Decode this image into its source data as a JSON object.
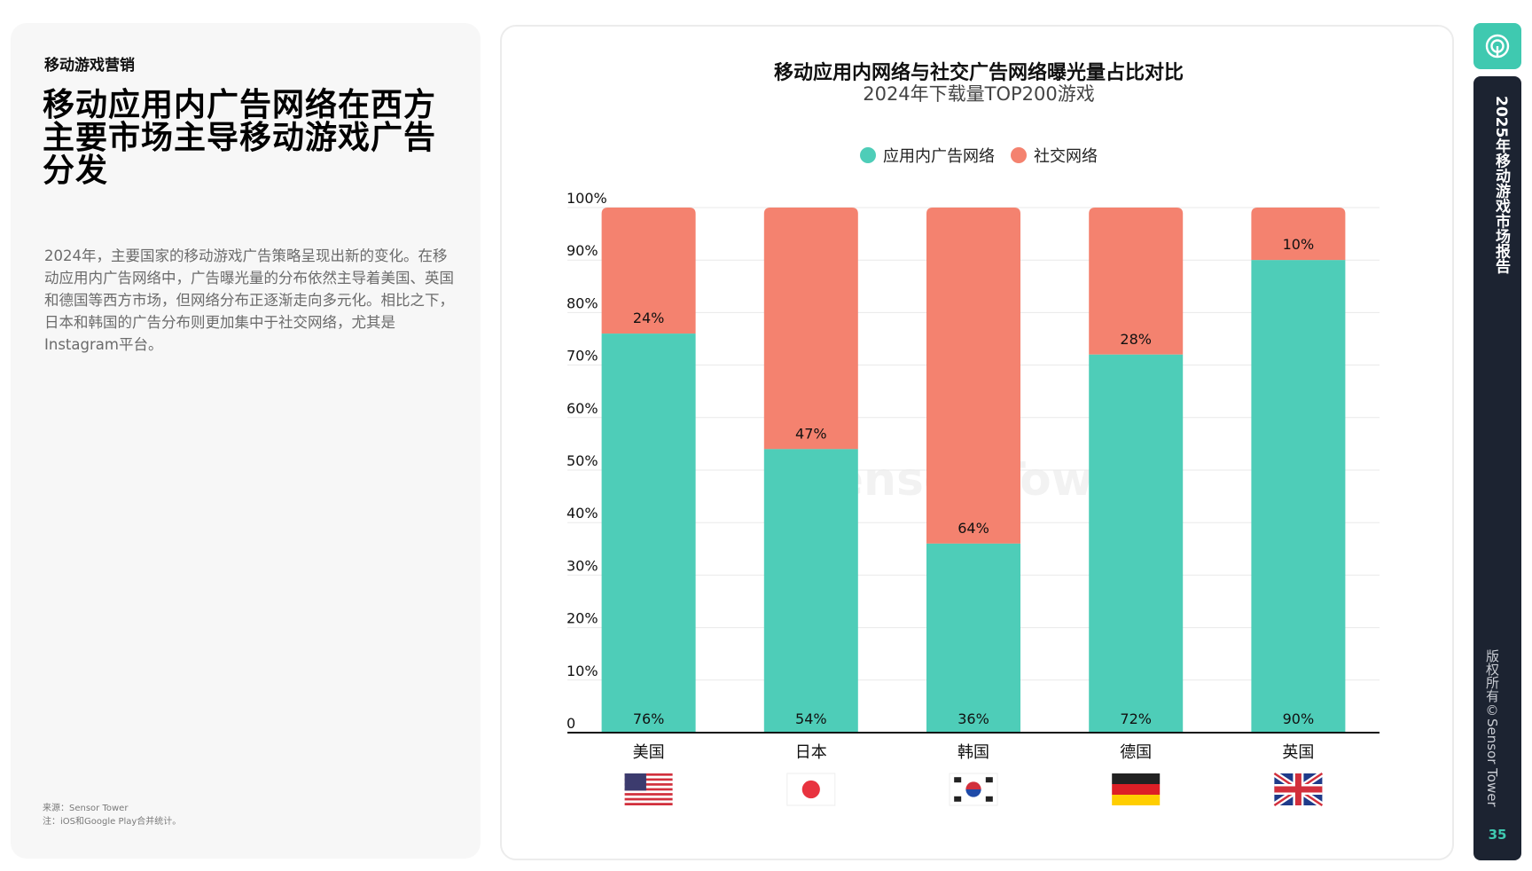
{
  "left": {
    "section_label": "移动游戏营销",
    "headline": "移动应用内广告网络在西方主要市场主导移动游戏广告分发",
    "body": "2024年，主要国家的移动游戏广告策略呈现出新的变化。在移动应用内广告网络中，广告曝光量的分布依然主导着美国、英国和德国等西方市场，但网络分布正逐渐走向多元化。相比之下，日本和韩国的广告分布则更加集中于社交网络，尤其是Instagram平台。",
    "source": "来源：Sensor Tower",
    "note": "注：iOS和Google Play合并统计。"
  },
  "sidebar": {
    "report_title": "2025年移动游戏市场报告",
    "copyright": "版权所有©Sensor Tower",
    "page_number": "35",
    "logo_icon": "sensor-tower-logo-icon"
  },
  "colors": {
    "in_app": "#4ecdb8",
    "social": "#f4826f",
    "accent": "#3fc9b0",
    "sidebar_bg": "#1c2331"
  },
  "chart_data": {
    "type": "bar",
    "stacked": true,
    "title": "移动应用内网络与社交广告网络曝光量占比对比",
    "subtitle": "2024年下载量TOP200游戏",
    "watermark": "Sensor Tower",
    "categories": [
      "美国",
      "日本",
      "韩国",
      "德国",
      "英国"
    ],
    "category_flags": [
      "us-flag-icon",
      "jp-flag-icon",
      "kr-flag-icon",
      "de-flag-icon",
      "gb-flag-icon"
    ],
    "series": [
      {
        "name": "应用内广告网络",
        "values": [
          76,
          54,
          36,
          72,
          90
        ],
        "labels": [
          "76%",
          "54%",
          "36%",
          "72%",
          "90%"
        ]
      },
      {
        "name": "社交网络",
        "values": [
          24,
          47,
          64,
          28,
          10
        ],
        "labels": [
          "24%",
          "47%",
          "64%",
          "28%",
          "10%"
        ]
      }
    ],
    "ylim": [
      0,
      100
    ],
    "yticks": [
      0,
      10,
      20,
      30,
      40,
      50,
      60,
      70,
      80,
      90,
      100
    ],
    "ytick_labels": [
      "0",
      "10%",
      "20%",
      "30%",
      "40%",
      "50%",
      "60%",
      "70%",
      "80%",
      "90%",
      "100%"
    ],
    "grid": true,
    "legend_position": "top-center"
  }
}
